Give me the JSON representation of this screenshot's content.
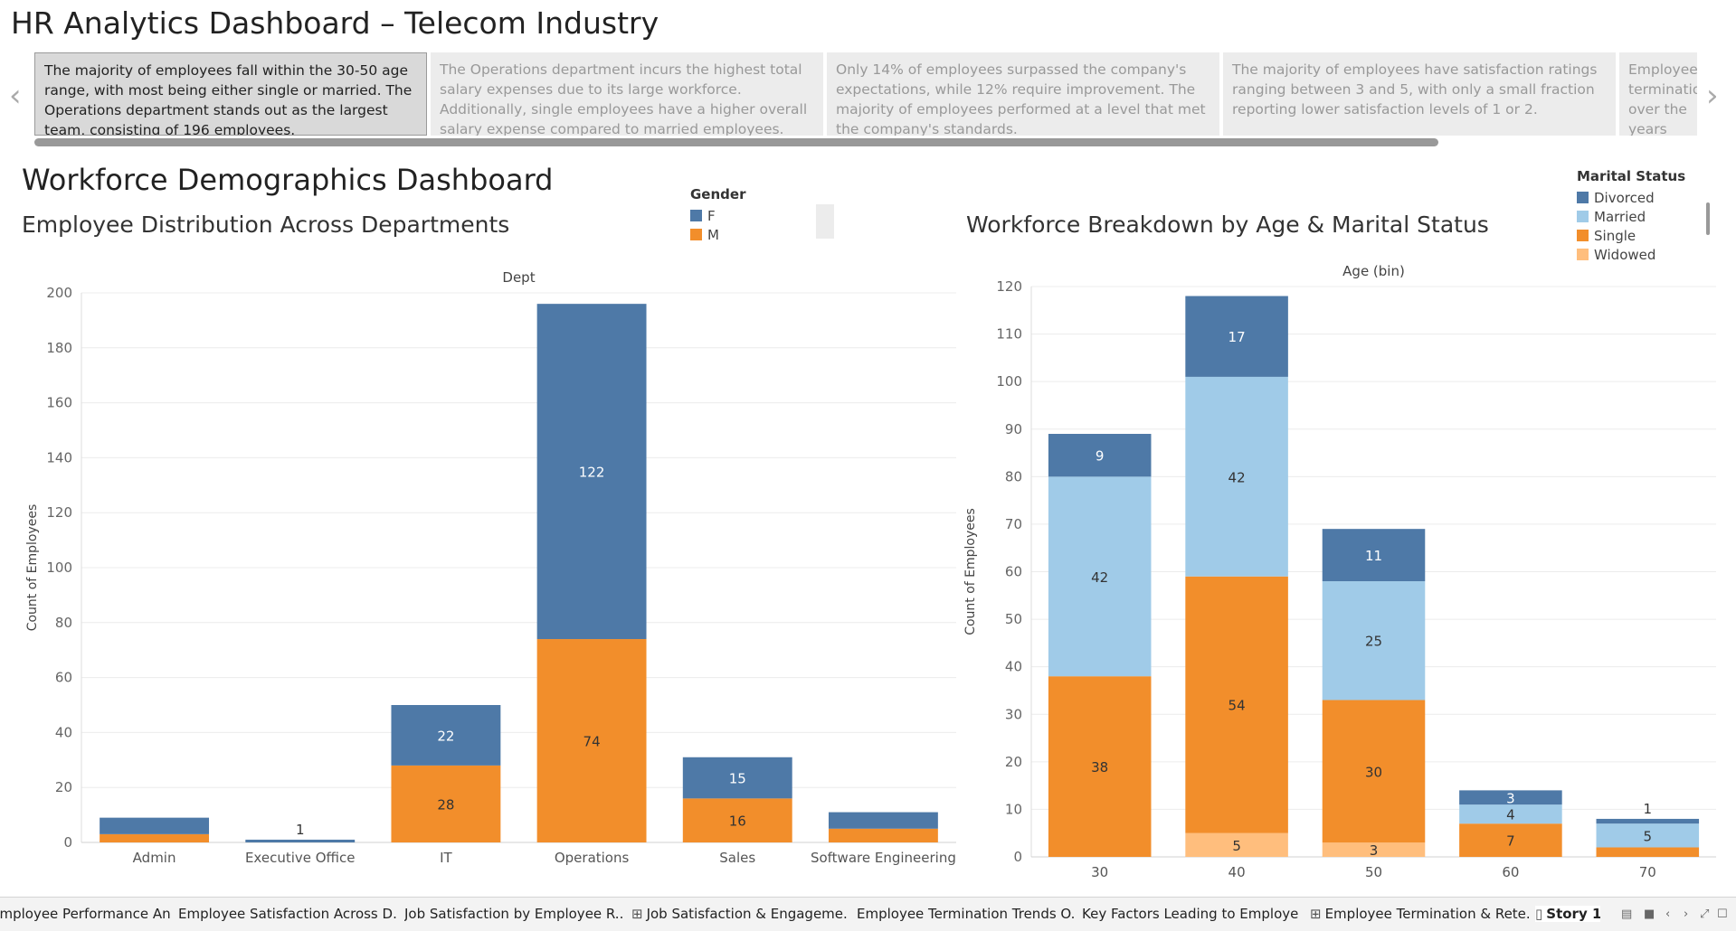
{
  "story_title": "HR Analytics Dashboard – Telecom Industry",
  "navigator": {
    "prev_icon": "chevron-left-icon",
    "next_icon": "chevron-right-icon",
    "prev_glyph": "‹",
    "next_glyph": "›",
    "points": [
      {
        "text": "The majority of employees fall within the 30-50 age range, with most being either single or married. The Operations department stands out as the largest team, consisting of 196 employees."
      },
      {
        "text": "The Operations department incurs the highest total salary expenses due to its large workforce. Additionally, single employees have a higher overall salary expense compared to married employees."
      },
      {
        "text": "Only 14% of employees surpassed the company's expectations, while 12% require improvement. The majority of employees performed at a level that met the company's standards."
      },
      {
        "text": "The majority of employees have satisfaction ratings ranging between 3 and 5, with only a small fraction reporting lower satisfaction levels of 1 or 2."
      },
      {
        "text": "Employee terminations over the years show that the majority were voluntary and"
      }
    ]
  },
  "dashboard_title": "Workforce Demographics Dashboard",
  "legend_gender": {
    "title": "Gender",
    "items": [
      {
        "label": "F",
        "color": "#4e79a7"
      },
      {
        "label": "M",
        "color": "#f28e2b"
      }
    ]
  },
  "legend_marital": {
    "title": "Marital Status",
    "items": [
      {
        "label": "Divorced",
        "color": "#4e79a7"
      },
      {
        "label": "Married",
        "color": "#a0cbe8"
      },
      {
        "label": "Single",
        "color": "#f28e2b"
      },
      {
        "label": "Widowed",
        "color": "#ffbe7d"
      }
    ]
  },
  "chart_data": [
    {
      "type": "bar",
      "stacked": true,
      "title": "Employee Distribution Across Departments",
      "xlabel": "Dept",
      "ylabel": "Count of Employees",
      "categories": [
        "Admin",
        "Executive Office",
        "IT",
        "Operations",
        "Sales",
        "Software Engineering"
      ],
      "series": [
        {
          "name": "M",
          "color": "#f28e2b",
          "values": [
            3,
            0,
            28,
            74,
            16,
            5
          ],
          "labels": [
            "",
            "",
            "28",
            "74",
            "16",
            ""
          ]
        },
        {
          "name": "F",
          "color": "#4e79a7",
          "values": [
            6,
            1,
            22,
            122,
            15,
            6
          ],
          "labels": [
            "",
            "1",
            "22",
            "122",
            "15",
            ""
          ]
        }
      ],
      "ylim": [
        0,
        200
      ],
      "yticks": [
        0,
        20,
        40,
        60,
        80,
        100,
        120,
        140,
        160,
        180,
        200
      ],
      "grid": true,
      "legend": "top"
    },
    {
      "type": "bar",
      "stacked": true,
      "title": "Workforce Breakdown by Age & Marital Status",
      "xlabel": "Age (bin)",
      "ylabel": "Count of Employees",
      "categories": [
        "30",
        "40",
        "50",
        "60",
        "70"
      ],
      "series": [
        {
          "name": "Widowed",
          "color": "#ffbe7d",
          "values": [
            0,
            5,
            3,
            0,
            0
          ],
          "labels": [
            "",
            "5",
            "3",
            "",
            ""
          ]
        },
        {
          "name": "Single",
          "color": "#f28e2b",
          "values": [
            38,
            54,
            30,
            7,
            2
          ],
          "labels": [
            "38",
            "54",
            "30",
            "7",
            "2"
          ]
        },
        {
          "name": "Married",
          "color": "#a0cbe8",
          "values": [
            42,
            42,
            25,
            4,
            5
          ],
          "labels": [
            "42",
            "42",
            "25",
            "4",
            "5"
          ]
        },
        {
          "name": "Divorced",
          "color": "#4e79a7",
          "values": [
            9,
            17,
            11,
            3,
            1
          ],
          "labels": [
            "9",
            "17",
            "11",
            "3",
            "1"
          ]
        }
      ],
      "ylim": [
        0,
        120
      ],
      "yticks": [
        0,
        10,
        20,
        30,
        40,
        50,
        60,
        70,
        80,
        90,
        100,
        110,
        120
      ],
      "grid": true,
      "legend": "top-right"
    }
  ],
  "tabs": [
    {
      "label": "Employee Performance Analy...",
      "icon": ""
    },
    {
      "label": "Employee Satisfaction Across D...",
      "icon": ""
    },
    {
      "label": "Job Satisfaction by Employee R...",
      "icon": ""
    },
    {
      "label": "Job Satisfaction & Engageme...",
      "icon": "⊞"
    },
    {
      "label": "Employee Termination Trends O...",
      "icon": ""
    },
    {
      "label": "Key Factors Leading to Employe...",
      "icon": ""
    },
    {
      "label": "Employee Termination & Rete...",
      "icon": "⊞"
    },
    {
      "label": "Story 1",
      "icon": "▯"
    }
  ],
  "tab_controls": [
    "▤",
    "■",
    "‹",
    "›",
    "⤢",
    "☐"
  ]
}
